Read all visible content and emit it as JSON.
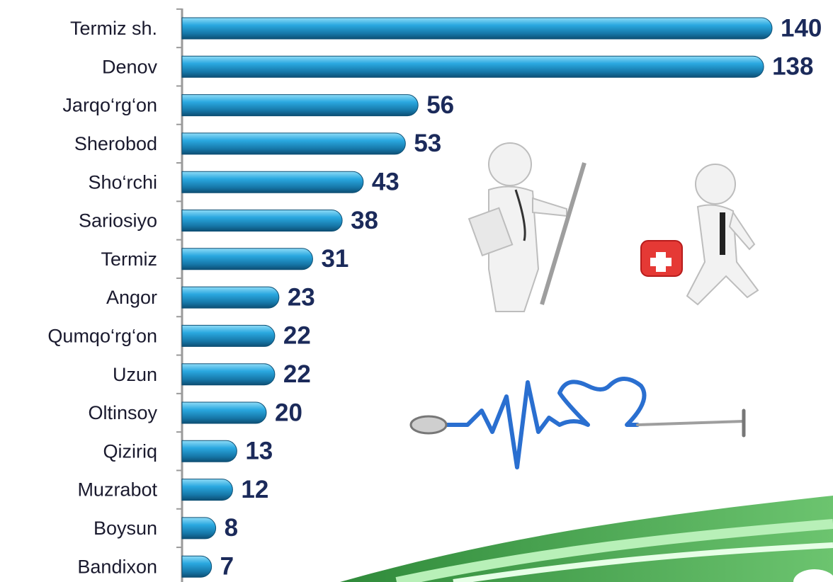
{
  "chart_data": {
    "type": "bar",
    "orientation": "horizontal",
    "categories": [
      "Termiz sh.",
      "Denov",
      "Jarqo‘rg‘on",
      "Sherobod",
      "Sho‘rchi",
      "Sariosiyo",
      "Termiz",
      "Angor",
      "Qumqo‘rg‘on",
      "Uzun",
      "Oltinsoy",
      "Qiziriq",
      "Muzrabot",
      "Boysun",
      "Bandixon"
    ],
    "values": [
      140,
      138,
      56,
      53,
      43,
      38,
      31,
      23,
      22,
      22,
      20,
      13,
      12,
      8,
      7
    ],
    "color": "#1e9ad6",
    "xlim": [
      0,
      140
    ]
  }
}
